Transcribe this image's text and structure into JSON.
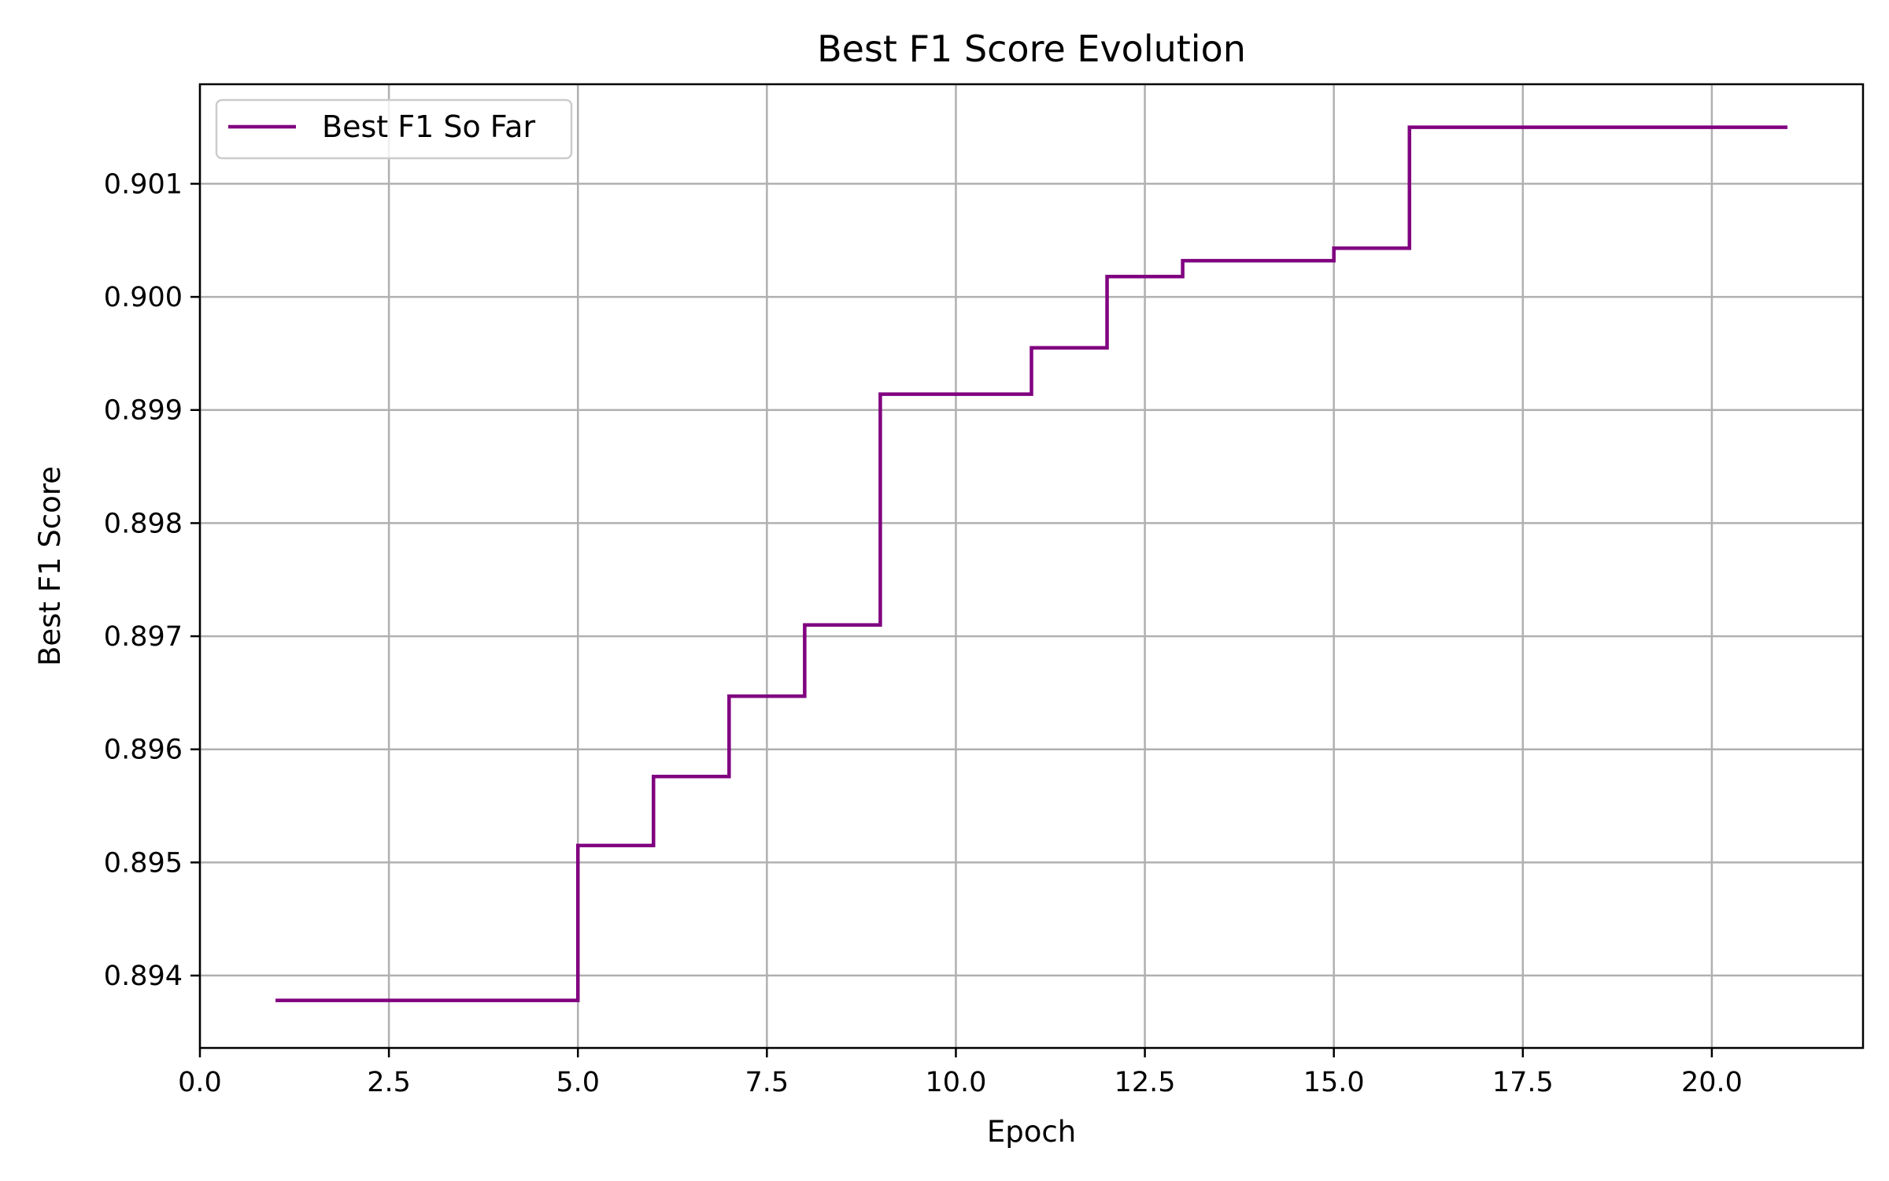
{
  "chart_data": {
    "type": "line",
    "title": "Best F1 Score Evolution",
    "xlabel": "Epoch",
    "ylabel": "Best F1 Score",
    "xlim": [
      0,
      22
    ],
    "ylim": [
      0.89336,
      0.90188
    ],
    "xticks": [
      0.0,
      2.5,
      5.0,
      7.5,
      10.0,
      12.5,
      15.0,
      17.5,
      20.0
    ],
    "xtick_labels": [
      "0.0",
      "2.5",
      "5.0",
      "7.5",
      "10.0",
      "12.5",
      "15.0",
      "17.5",
      "20.0"
    ],
    "yticks": [
      0.894,
      0.895,
      0.896,
      0.897,
      0.898,
      0.899,
      0.9,
      0.901
    ],
    "ytick_labels": [
      "0.894",
      "0.895",
      "0.896",
      "0.897",
      "0.898",
      "0.899",
      "0.900",
      "0.901"
    ],
    "grid": true,
    "legend_position": "top-left",
    "step": "post",
    "series": [
      {
        "name": "Best F1 So Far",
        "color": "#800080",
        "x": [
          1,
          2,
          3,
          4,
          5,
          6,
          7,
          8,
          9,
          10,
          11,
          12,
          13,
          14,
          15,
          16,
          17,
          18,
          19,
          20,
          21
        ],
        "y": [
          0.89378,
          0.89378,
          0.89378,
          0.89378,
          0.89515,
          0.89576,
          0.89647,
          0.8971,
          0.89914,
          0.89914,
          0.89955,
          0.90018,
          0.90032,
          0.90032,
          0.90043,
          0.9015,
          0.9015,
          0.9015,
          0.9015,
          0.9015,
          0.9015
        ]
      }
    ]
  }
}
